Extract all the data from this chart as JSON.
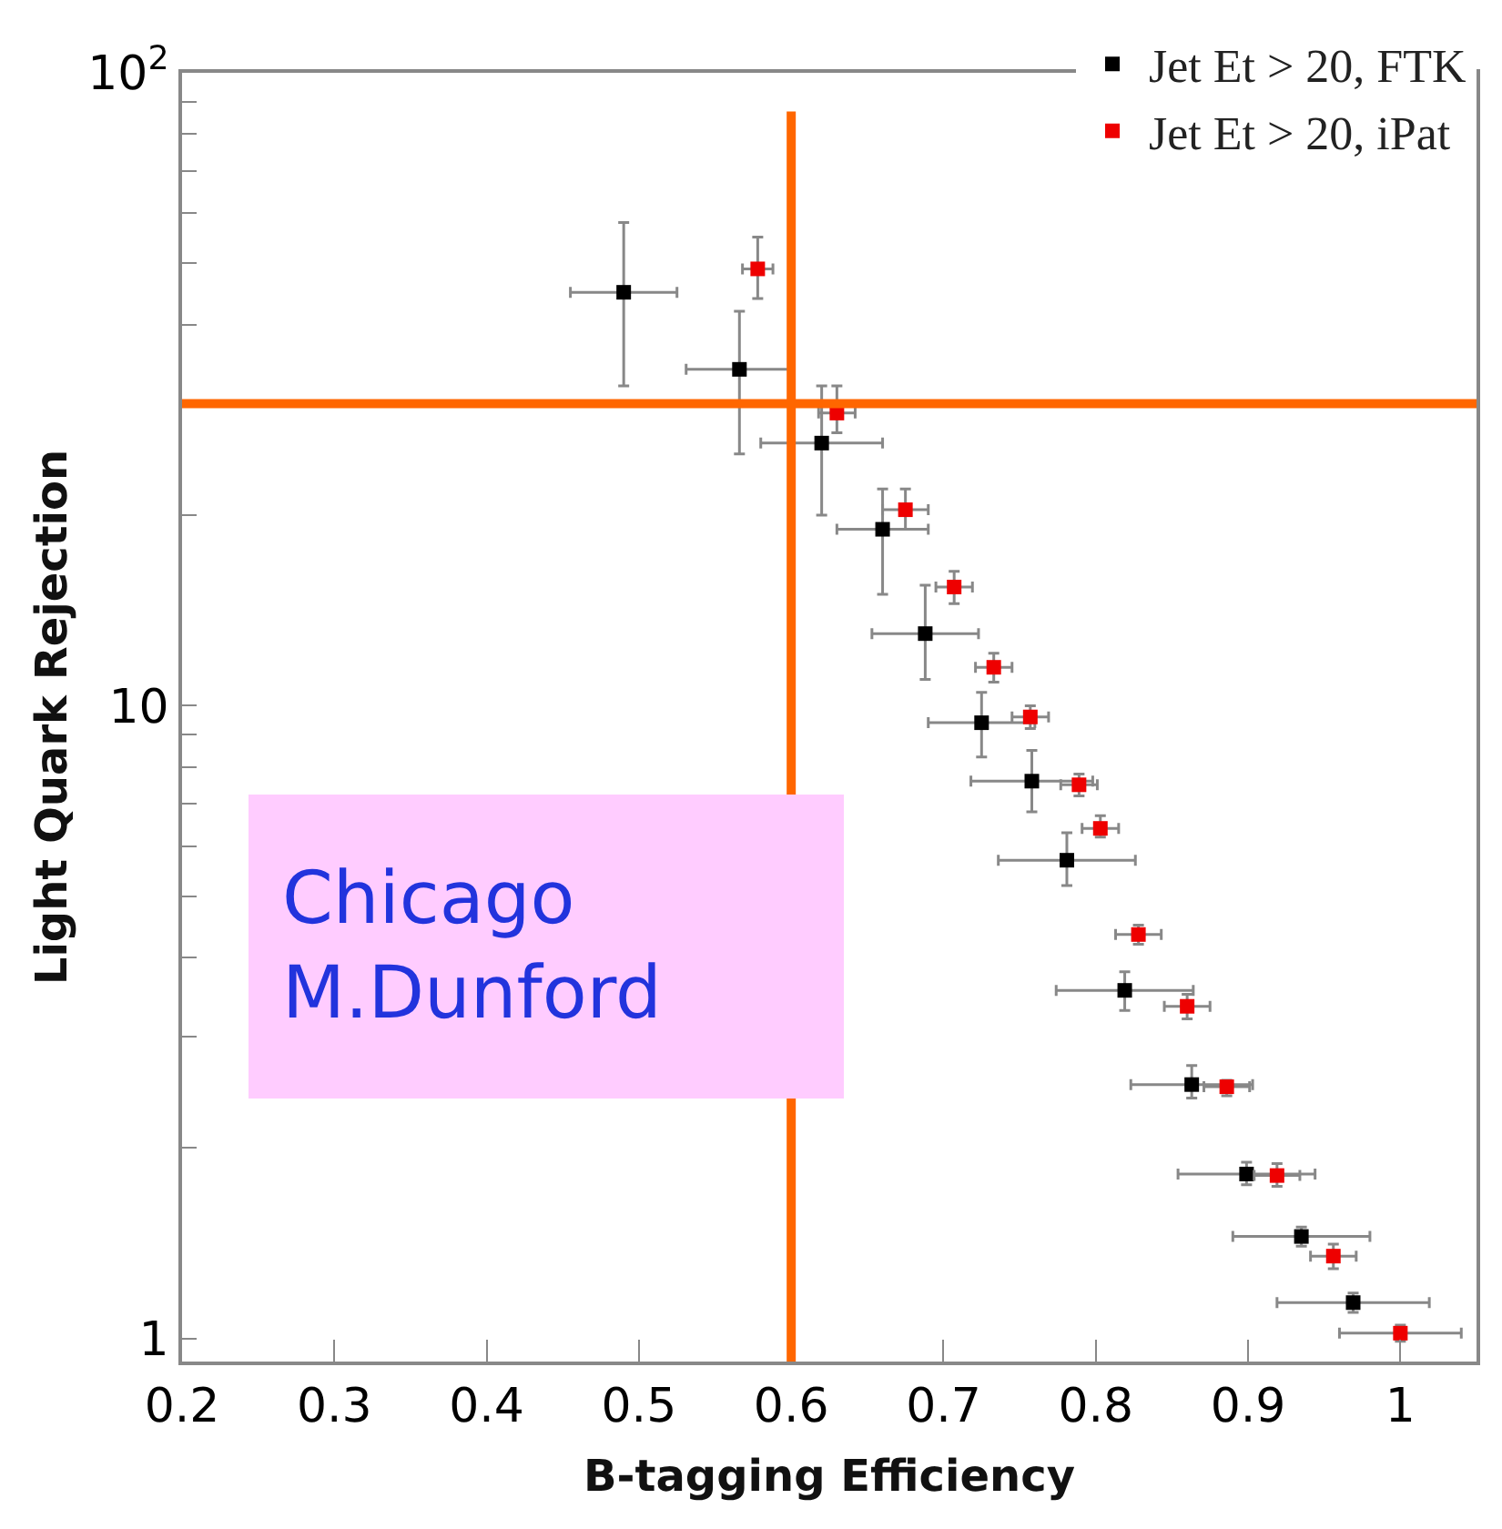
{
  "chart_data": {
    "type": "scatter",
    "xlabel": "B-tagging Efficiency",
    "ylabel": "Light Quark Rejection",
    "log": "y",
    "xlim": [
      0.2,
      1.05
    ],
    "ylim": [
      0.92,
      100
    ],
    "xticks": [
      0.2,
      0.3,
      0.4,
      0.5,
      0.6,
      0.7,
      0.8,
      0.9,
      1
    ],
    "yticks": [
      1,
      {
        "value": 2,
        "label": null
      },
      {
        "value": 3,
        "label": null
      },
      {
        "value": 4,
        "label": null
      },
      {
        "value": 5,
        "label": null
      },
      {
        "value": 6,
        "label": null
      },
      {
        "value": 7,
        "label": null
      },
      {
        "value": 8,
        "label": null
      },
      {
        "value": 9,
        "label": null
      },
      10,
      {
        "value": 20,
        "label": null
      },
      {
        "value": 30,
        "label": null
      },
      {
        "value": 40,
        "label": null
      },
      {
        "value": 50,
        "label": null
      },
      {
        "value": 60,
        "label": null
      },
      {
        "value": 70,
        "label": null
      },
      {
        "value": 80,
        "label": null
      },
      {
        "value": 90,
        "label": null
      },
      {
        "value": 100,
        "label": "10$^{2}$"
      }
    ],
    "legend": "top right",
    "marker": "square",
    "series": [
      {
        "name": "Jet Et > 20, FTK",
        "color": "#000000",
        "x": [
          0.49,
          0.566,
          0.62,
          0.66,
          0.688,
          0.725,
          0.758,
          0.781,
          0.819,
          0.863,
          0.899,
          0.935,
          0.969
        ],
        "values": [
          45,
          34,
          26,
          19,
          13,
          9.4,
          7.6,
          5.7,
          3.55,
          2.52,
          1.82,
          1.45,
          1.14
        ],
        "errors": [
          [
            32,
            58
          ],
          [
            25,
            42
          ],
          [
            20,
            32
          ],
          [
            15,
            22
          ],
          [
            11,
            15.5
          ],
          [
            8.3,
            10.5
          ],
          [
            6.8,
            8.5
          ],
          [
            5.2,
            6.3
          ],
          [
            3.3,
            3.8
          ],
          [
            2.4,
            2.7
          ],
          [
            1.75,
            1.9
          ],
          [
            1.4,
            1.5
          ],
          [
            1.1,
            1.18
          ]
        ],
        "xerrors": [
          0.035,
          0.035,
          0.04,
          0.03,
          0.035,
          0.035,
          0.04,
          0.045,
          0.045,
          0.04,
          0.045,
          0.045,
          0.05
        ]
      },
      {
        "name": "Jet Et > 20, iPat",
        "color": "#ee0000",
        "x": [
          0.578,
          0.63,
          0.675,
          0.707,
          0.733,
          0.757,
          0.789,
          0.803,
          0.828,
          0.86,
          0.886,
          0.919,
          0.956,
          1.0
        ],
        "values": [
          49,
          29,
          20.4,
          15.4,
          11.5,
          9.6,
          7.5,
          6.4,
          4.35,
          3.35,
          2.5,
          1.81,
          1.35,
          1.02
        ],
        "errors": [
          [
            44,
            55
          ],
          [
            27,
            32
          ],
          [
            19,
            22
          ],
          [
            14.5,
            16.3
          ],
          [
            10.9,
            12.1
          ],
          [
            9.2,
            10
          ],
          [
            7.2,
            7.8
          ],
          [
            6.2,
            6.7
          ],
          [
            4.2,
            4.5
          ],
          [
            3.2,
            3.5
          ],
          [
            2.42,
            2.56
          ],
          [
            1.74,
            1.89
          ],
          [
            1.29,
            1.41
          ],
          [
            0.99,
            1.05
          ]
        ],
        "xerrors": [
          0.01,
          0.012,
          0.015,
          0.012,
          0.012,
          0.012,
          0.012,
          0.012,
          0.015,
          0.015,
          0.015,
          0.015,
          0.015,
          0.04
        ]
      }
    ],
    "ref_lines": [
      {
        "axis": "x",
        "value": 0.6,
        "color": "#ff6600"
      },
      {
        "axis": "y",
        "value": 30,
        "color": "#ff6600"
      }
    ],
    "annotations": [
      "Chicago\nM.Dunford"
    ]
  }
}
